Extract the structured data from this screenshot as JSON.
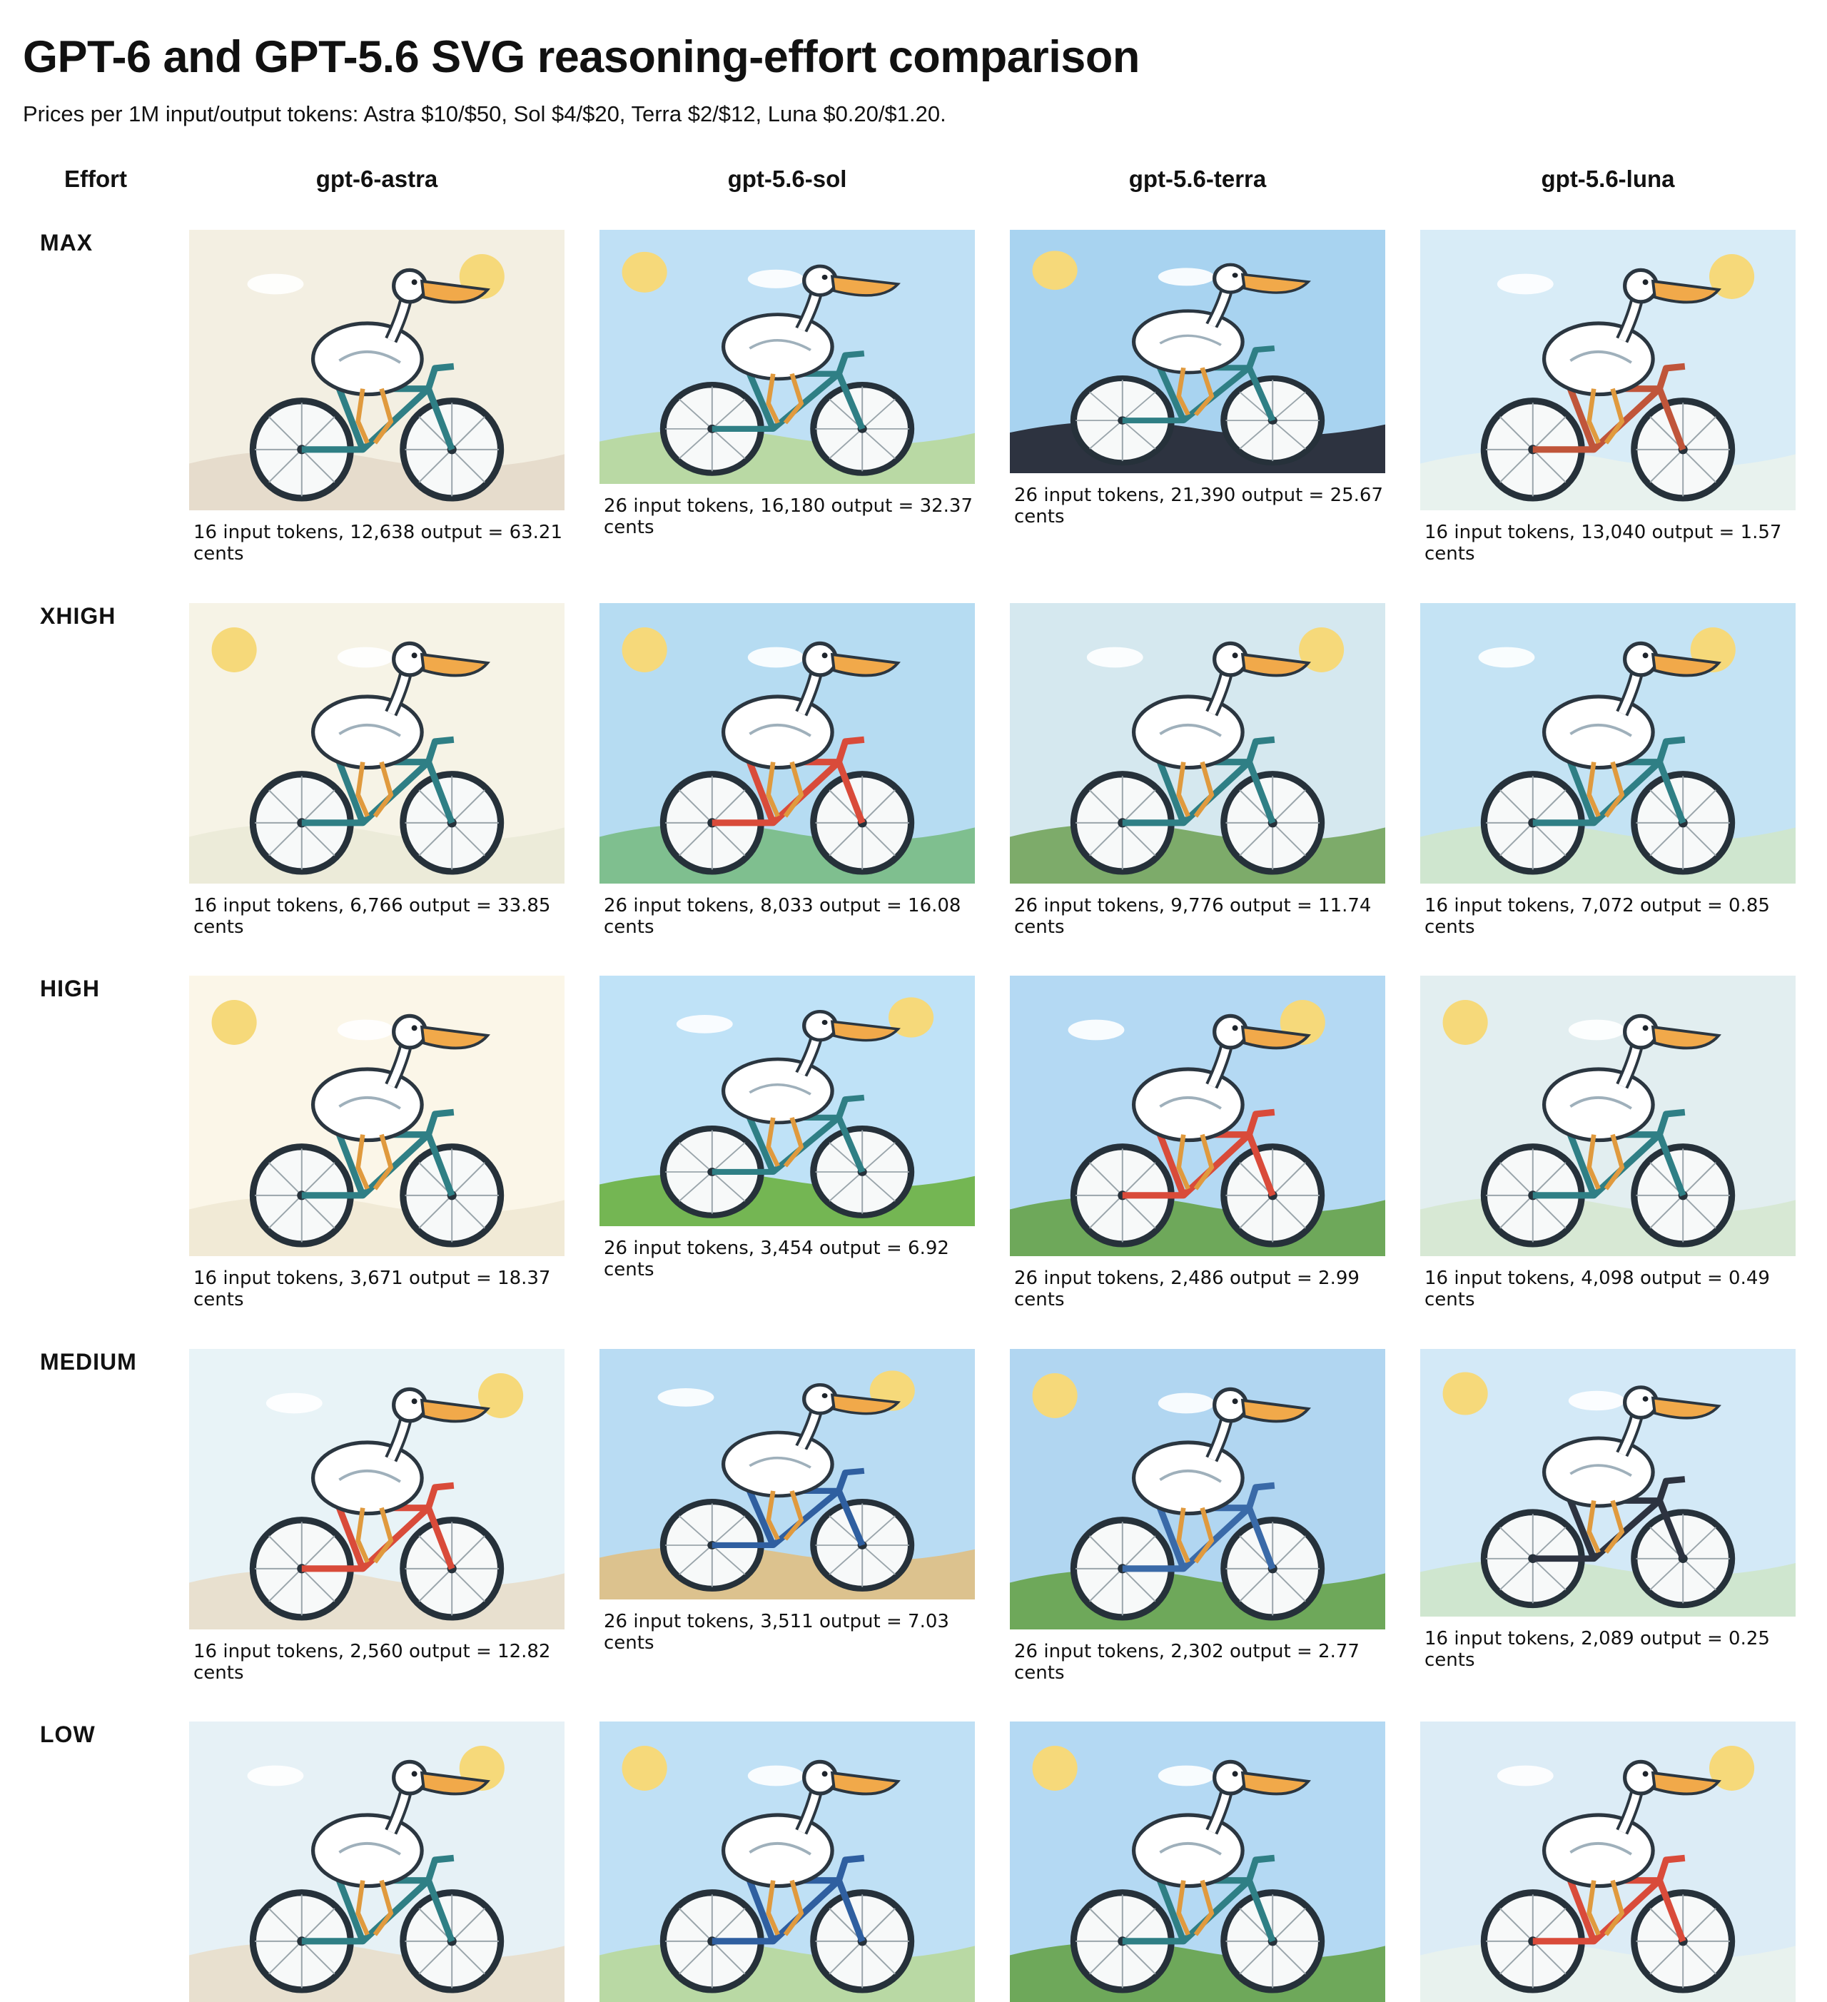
{
  "title": "GPT-6 and GPT-5.6 SVG reasoning-effort comparison",
  "subtitle": "Prices per 1M input/output tokens: Astra $10/$50, Sol $4/$20, Terra $2/$12, Luna $0.20/$1.20.",
  "header": {
    "effort_label": "Effort",
    "models": [
      "gpt-6-astra",
      "gpt-5.6-sol",
      "gpt-5.6-terra",
      "gpt-5.6-luna"
    ]
  },
  "rows": [
    {
      "effort": "MAX",
      "cells": [
        {
          "caption": "16 input tokens, 12,638 output = 63.21 cents",
          "bg": "#f3efe2",
          "ground": "#e6dccc",
          "frame": "#2f7f85"
        },
        {
          "caption": "26 input tokens, 16,180 output = 32.37 cents",
          "bg": "#bfe0f5",
          "ground": "#b9d9a4",
          "frame": "#2f7f85"
        },
        {
          "caption": "26 input tokens, 21,390 output = 25.67 cents",
          "bg": "#a8d3f0",
          "ground": "#2d3340",
          "frame": "#2f7f85"
        },
        {
          "caption": "16 input tokens, 13,040 output = 1.57 cents",
          "bg": "#d8ecf7",
          "ground": "#e8f2ee",
          "frame": "#c0553a"
        }
      ]
    },
    {
      "effort": "XHIGH",
      "cells": [
        {
          "caption": "16 input tokens, 6,766 output = 33.85 cents",
          "bg": "#f6f3e6",
          "ground": "#ecebd9",
          "frame": "#2f7f85"
        },
        {
          "caption": "26 input tokens, 8,033 output = 16.08 cents",
          "bg": "#b6dcf2",
          "ground": "#7fbf8f",
          "frame": "#d94b3a"
        },
        {
          "caption": "26 input tokens, 9,776 output = 11.74 cents",
          "bg": "#d5e8ef",
          "ground": "#7dab6a",
          "frame": "#2f7f85"
        },
        {
          "caption": "16 input tokens, 7,072 output = 0.85 cents",
          "bg": "#c4e3f4",
          "ground": "#cfe6cf",
          "frame": "#2f7f85"
        }
      ]
    },
    {
      "effort": "HIGH",
      "cells": [
        {
          "caption": "16 input tokens, 3,671 output = 18.37 cents",
          "bg": "#fbf6e8",
          "ground": "#f1ead6",
          "frame": "#2f7f85"
        },
        {
          "caption": "26 input tokens, 3,454 output = 6.92 cents",
          "bg": "#bfe2f7",
          "ground": "#74b653",
          "frame": "#2f7f85"
        },
        {
          "caption": "26 input tokens, 2,486 output = 2.99 cents",
          "bg": "#b4d9f3",
          "ground": "#6ea85a",
          "frame": "#d94b3a"
        },
        {
          "caption": "16 input tokens, 4,098 output = 0.49 cents",
          "bg": "#e2eef0",
          "ground": "#d7e8d4",
          "frame": "#2f7f85"
        }
      ]
    },
    {
      "effort": "MEDIUM",
      "cells": [
        {
          "caption": "16 input tokens, 2,560 output = 12.82 cents",
          "bg": "#e8f3f7",
          "ground": "#e8e0cf",
          "frame": "#d94b3a"
        },
        {
          "caption": "26 input tokens, 3,511 output = 7.03 cents",
          "bg": "#b9dcf3",
          "ground": "#dcc28e",
          "frame": "#2f5fa0"
        },
        {
          "caption": "26 input tokens, 2,302 output = 2.77 cents",
          "bg": "#b1d6f1",
          "ground": "#6ea85a",
          "frame": "#3a6aa8"
        },
        {
          "caption": "16 input tokens, 2,089 output = 0.25 cents",
          "bg": "#d3e9f7",
          "ground": "#cfe6cf",
          "frame": "#2d3340"
        }
      ]
    },
    {
      "effort": "LOW",
      "cells": [
        {
          "caption": "",
          "bg": "#e6f1f6",
          "ground": "#e8e0cf",
          "frame": "#2f7f85"
        },
        {
          "caption": "",
          "bg": "#bfe0f5",
          "ground": "#b9d9a4",
          "frame": "#2f5fa0"
        },
        {
          "caption": "",
          "bg": "#b4d9f3",
          "ground": "#6ea85a",
          "frame": "#2f7f85"
        },
        {
          "caption": "",
          "bg": "#dcecf6",
          "ground": "#e8f2ee",
          "frame": "#d94b3a"
        }
      ]
    }
  ]
}
